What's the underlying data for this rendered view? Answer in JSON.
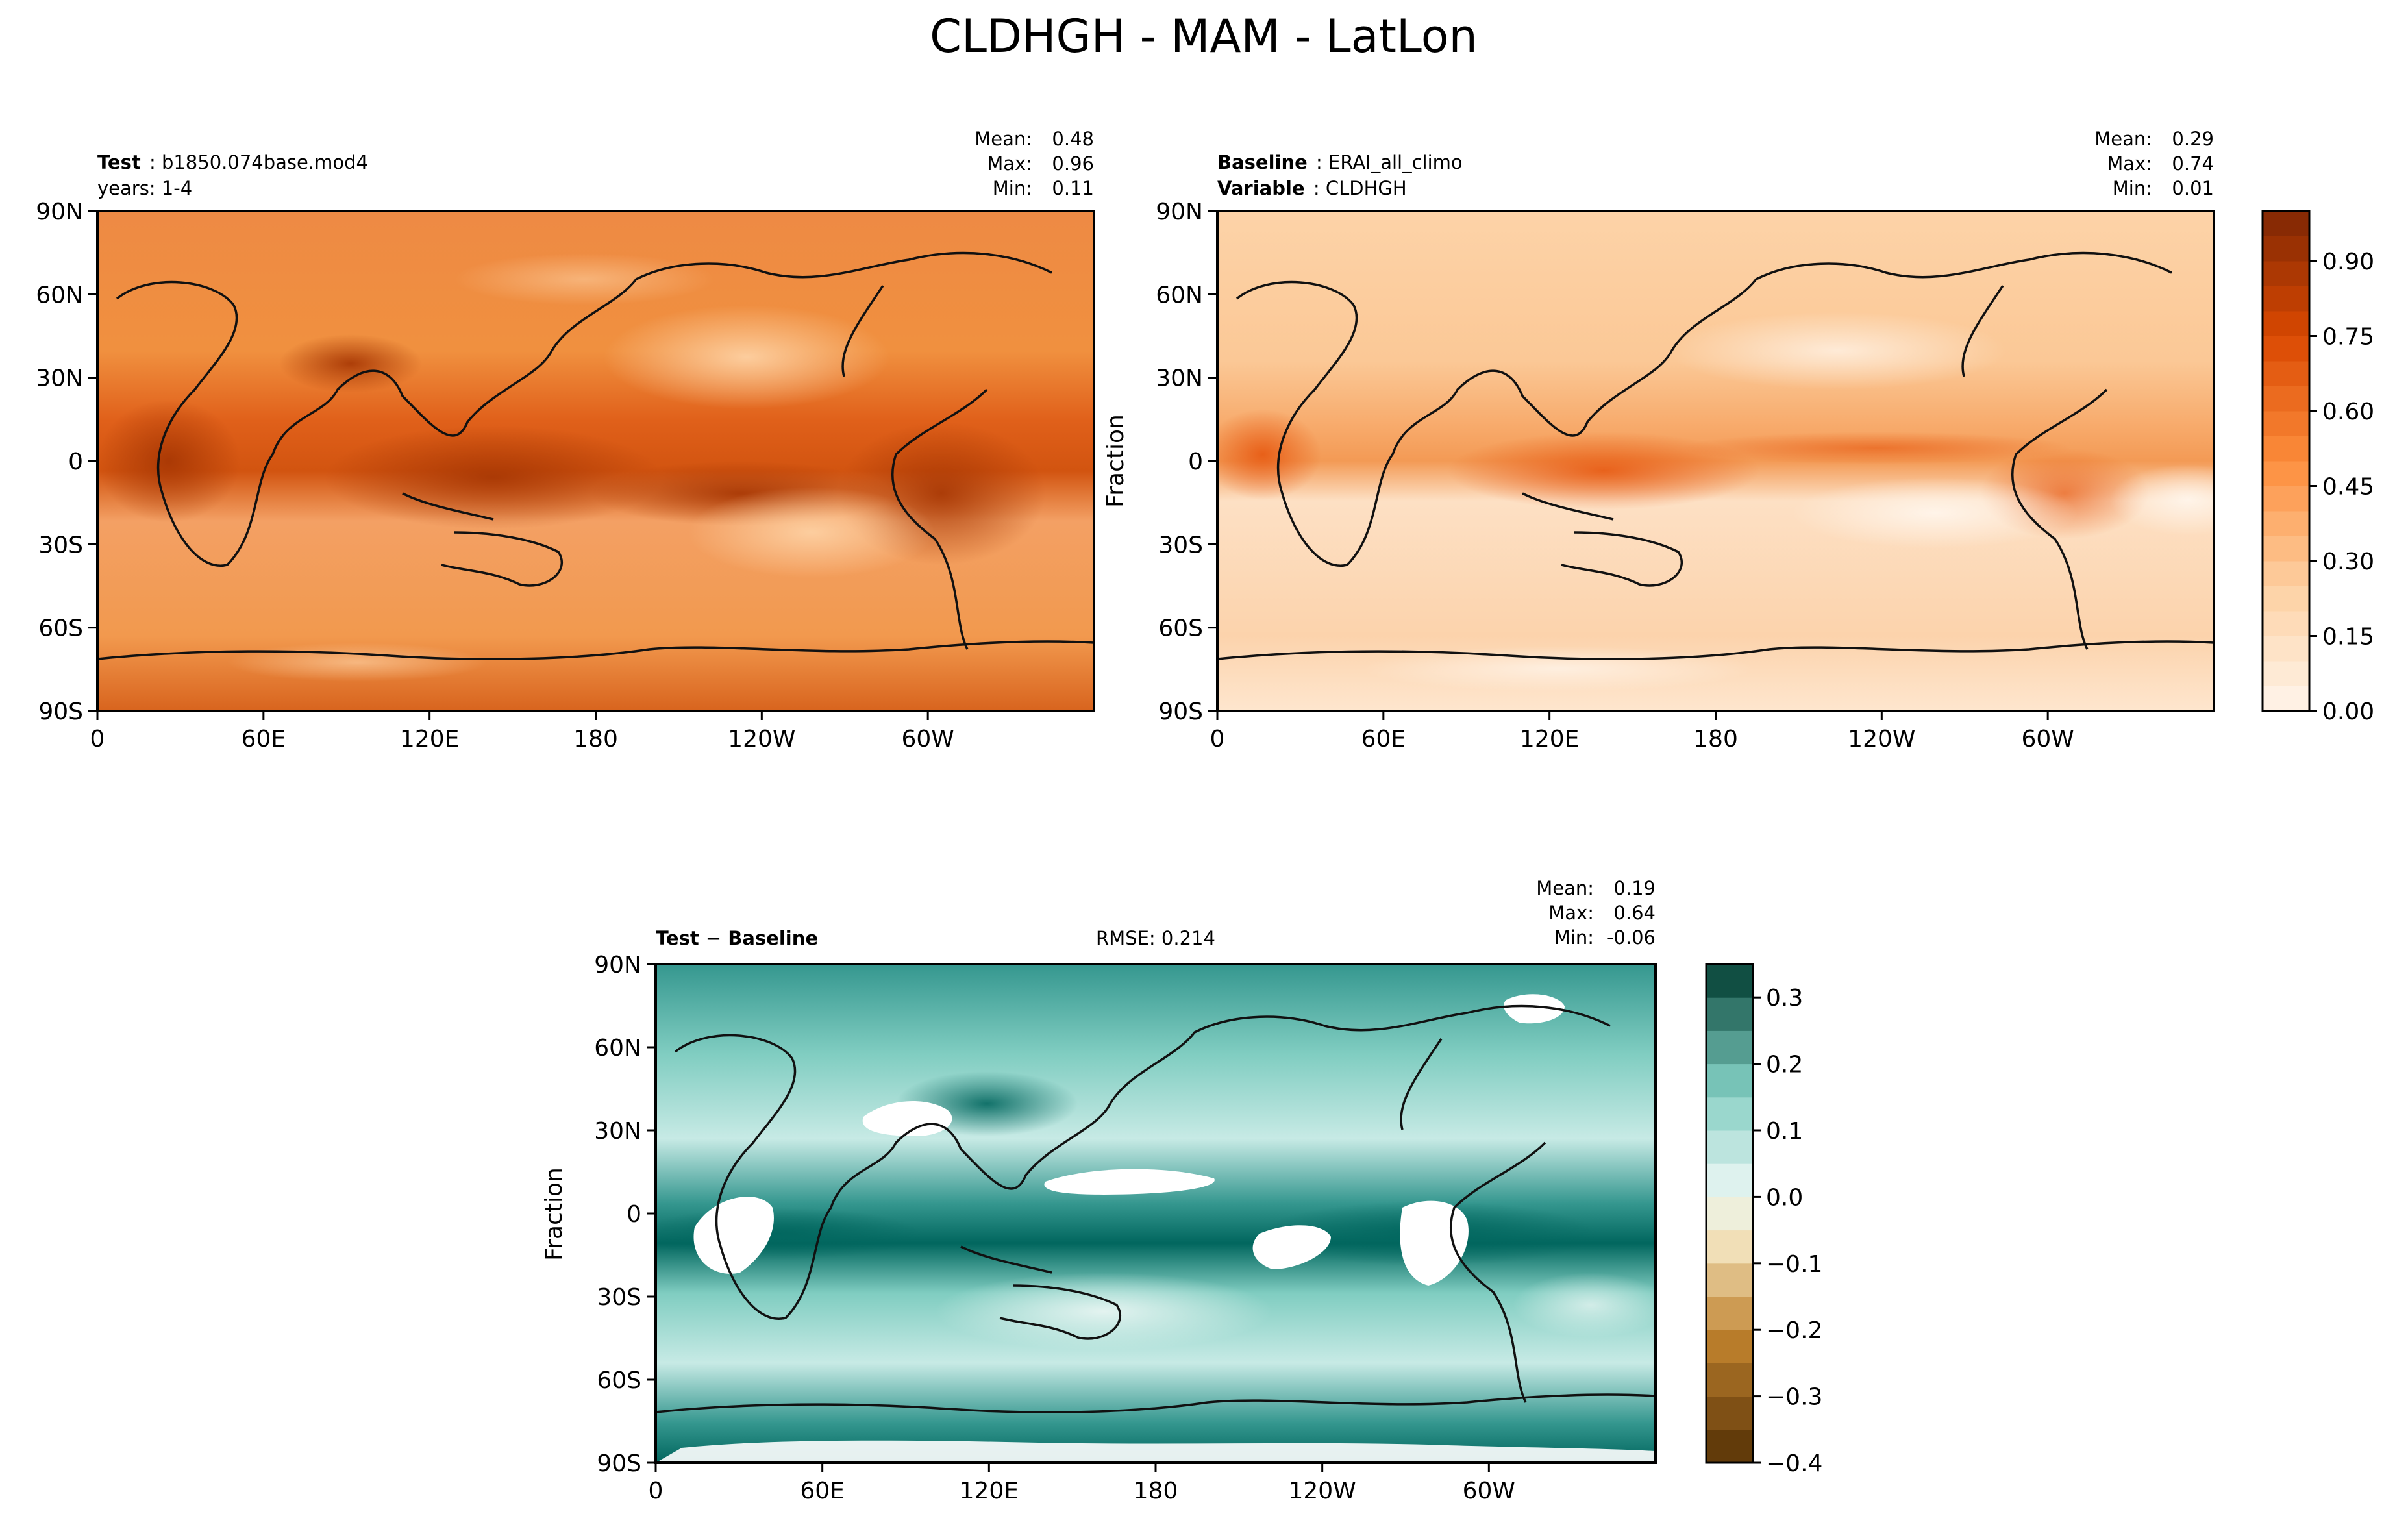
{
  "figure": {
    "title": "CLDHGH - MAM - LatLon"
  },
  "chart_data": [
    {
      "type": "heatmap",
      "panel": "test",
      "left_title_bold": "Test",
      "left_title_text": "b1850.074base.mod4",
      "left_subtitle": "years: 1-4",
      "stats": {
        "mean_label": "Mean:",
        "mean": "0.48",
        "max_label": "Max:",
        "max": "0.96",
        "min_label": "Min:",
        "min": "0.11"
      },
      "xlabel": "",
      "ylabel": "",
      "x_ticks": [
        "0",
        "60E",
        "120E",
        "180",
        "120W",
        "60W"
      ],
      "y_ticks": [
        "90N",
        "60N",
        "30N",
        "0",
        "30S",
        "60S",
        "90S"
      ],
      "xlim": [
        0,
        360
      ],
      "ylim": [
        -90,
        90
      ],
      "colormap": "Oranges",
      "field_features": [
        {
          "lon": 140,
          "lat": 2,
          "value": 0.85
        },
        {
          "lon": 300,
          "lat": -5,
          "value": 0.82
        },
        {
          "lon": 25,
          "lat": 0,
          "value": 0.78
        },
        {
          "lon": 95,
          "lat": 35,
          "value": 0.75
        },
        {
          "lon": 200,
          "lat": -8,
          "value": 0.65
        },
        {
          "lon": 230,
          "lat": 25,
          "value": 0.25
        },
        {
          "lon": 260,
          "lat": -20,
          "value": 0.28
        }
      ]
    },
    {
      "type": "heatmap",
      "panel": "baseline",
      "left_title_bold": "Baseline",
      "left_title_text": "ERAI_all_climo",
      "left_subtitle_bold": "Variable",
      "left_subtitle_text": "CLDHGH",
      "stats": {
        "mean_label": "Mean:",
        "mean": "0.29",
        "max_label": "Max:",
        "max": "0.74",
        "min_label": "Min:",
        "min": "0.01"
      },
      "xlabel": "",
      "ylabel": "Fraction",
      "x_ticks": [
        "0",
        "60E",
        "120E",
        "180",
        "120W",
        "60W"
      ],
      "y_ticks": [
        "90N",
        "60N",
        "30N",
        "0",
        "30S",
        "60S",
        "90S"
      ],
      "xlim": [
        0,
        360
      ],
      "ylim": [
        -90,
        90
      ],
      "colormap": "Oranges",
      "colorbar": {
        "ticks": [
          "0.00",
          "0.15",
          "0.30",
          "0.45",
          "0.60",
          "0.75",
          "0.90"
        ],
        "range": [
          0,
          1
        ],
        "levels": 20
      },
      "field_features": [
        {
          "lon": 145,
          "lat": 0,
          "value": 0.65
        },
        {
          "lon": 15,
          "lat": 0,
          "value": 0.62
        },
        {
          "lon": 300,
          "lat": -8,
          "value": 0.5
        },
        {
          "lon": 100,
          "lat": 5,
          "value": 0.55
        },
        {
          "lon": 240,
          "lat": 5,
          "value": 0.45
        },
        {
          "lon": 250,
          "lat": -15,
          "value": 0.05
        },
        {
          "lon": 330,
          "lat": -15,
          "value": 0.08
        }
      ]
    },
    {
      "type": "heatmap",
      "panel": "difference",
      "left_title": "Test − Baseline",
      "center_title": "RMSE: 0.214",
      "stats": {
        "mean_label": "Mean:",
        "mean": "0.19",
        "max_label": "Max:",
        "max": "0.64",
        "min_label": "Min:",
        "min": "-0.06"
      },
      "xlabel": "",
      "ylabel": "Fraction",
      "x_ticks": [
        "0",
        "60E",
        "120E",
        "180",
        "120W",
        "60W"
      ],
      "y_ticks": [
        "90N",
        "60N",
        "30N",
        "0",
        "30S",
        "60S",
        "90S"
      ],
      "xlim": [
        0,
        360
      ],
      "ylim": [
        -90,
        90
      ],
      "colormap": "BrBG",
      "colorbar": {
        "ticks": [
          "0.3",
          "0.2",
          "0.1",
          "0.0",
          "−0.1",
          "−0.2",
          "−0.3",
          "−0.4"
        ],
        "range": [
          -0.4,
          0.35
        ],
        "levels": 15
      },
      "field_features": [
        {
          "lon": 30,
          "lat": -5,
          "value": 0.4
        },
        {
          "lon": 95,
          "lat": 35,
          "value": 0.4
        },
        {
          "lon": 175,
          "lat": 10,
          "value": 0.4
        },
        {
          "lon": 290,
          "lat": -5,
          "value": 0.4
        },
        {
          "lon": 250,
          "lat": -12,
          "value": 0.4
        },
        {
          "lon": 60,
          "lat": 0,
          "value": 0.3
        },
        {
          "lon": 330,
          "lat": 75,
          "value": 0.4
        },
        {
          "lon": 180,
          "lat": -85,
          "value": 0.4
        }
      ]
    }
  ]
}
